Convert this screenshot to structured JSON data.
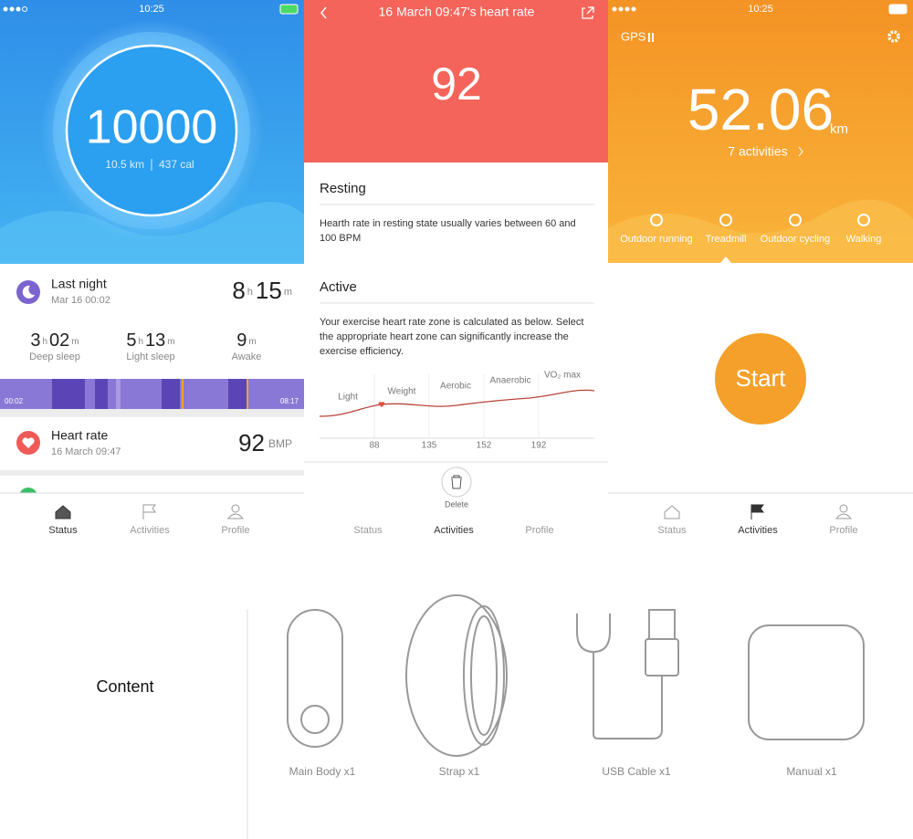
{
  "status_screen": {
    "time": "10:25",
    "steps": "10000",
    "distance": "10.5 km",
    "calories": "437 cal",
    "sleep": {
      "title": "Last night",
      "date": "Mar 16 00:02",
      "total": [
        "8",
        "h",
        "15",
        "m"
      ],
      "stats": [
        {
          "value": [
            "3",
            "h",
            "02",
            "m"
          ],
          "label": "Deep sleep"
        },
        {
          "value": [
            "5",
            "h",
            "13",
            "m"
          ],
          "label": "Light sleep"
        },
        {
          "value": [
            "9",
            "m"
          ],
          "label": "Awake"
        }
      ],
      "start": "00:02",
      "end": "08:17"
    },
    "heart": {
      "title": "Heart rate",
      "date": "16 March 09:47",
      "value": "92",
      "unit": "BMP"
    },
    "tabs": [
      "Status",
      "Activities",
      "Profile"
    ]
  },
  "heart_rate_screen": {
    "title": "16 March 09:47's heart rate",
    "value": "92",
    "resting": {
      "title": "Resting",
      "text": "Hearth rate in resting state usually varies between 60 and 100 BPM"
    },
    "active": {
      "title": "Active",
      "text": "Your exercise heart rate zone is calculated as below. Select the appropriate heart zone can significantly increase the exercise efficiency."
    },
    "zones": [
      "Light",
      "Weight",
      "Aerobic",
      "Anaerobic",
      "VO₂ max"
    ],
    "ticks": [
      88,
      135,
      152,
      192
    ],
    "delete": "Delete",
    "tabs": [
      "Status",
      "Activities",
      "Profile"
    ]
  },
  "activity_screen": {
    "time": "10:25",
    "gps": "GPS",
    "distance": "52.06",
    "unit": "km",
    "activities": "7 activities",
    "modes": [
      "Outdoor running",
      "Treadmill",
      "Outdoor cycling",
      "Walking"
    ],
    "start": "Start",
    "tabs": [
      "Status",
      "Activities",
      "Profile"
    ]
  },
  "contents": {
    "title": "Content",
    "items": [
      "Main Body x1",
      "Strap x1",
      "USB Cable x1",
      "Manual x1"
    ]
  }
}
